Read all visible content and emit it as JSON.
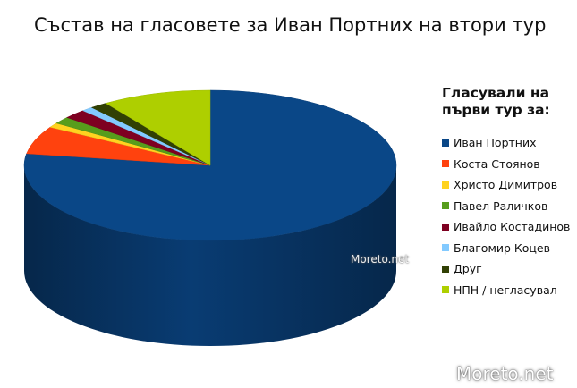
{
  "chart_data": {
    "type": "pie",
    "title": "Състав на гласовете за Иван Портних на втори тур",
    "legend_title_lines": [
      "Гласували на",
      "първи тур за:"
    ],
    "legend_placement": "right",
    "style": "3d",
    "slices": [
      {
        "label": "Иван Портних",
        "value": 77.5,
        "color": "#0a4787"
      },
      {
        "label": "Коста Стоянов",
        "value": 6.0,
        "color": "#ff420e"
      },
      {
        "label": "Христо Димитров",
        "value": 1.0,
        "color": "#ffd320"
      },
      {
        "label": "Павел Раличков",
        "value": 1.5,
        "color": "#579d1c"
      },
      {
        "label": "Ивайло Костадинов",
        "value": 2.0,
        "color": "#7e0021"
      },
      {
        "label": "Благомир Коцев",
        "value": 1.0,
        "color": "#83caff"
      },
      {
        "label": "Друг",
        "value": 1.5,
        "color": "#314004"
      },
      {
        "label": "НПН / негласувал",
        "value": 9.5,
        "color": "#aecf00"
      }
    ]
  },
  "watermarks": {
    "center": "Moreto.net",
    "corner": "Moreto.net"
  }
}
